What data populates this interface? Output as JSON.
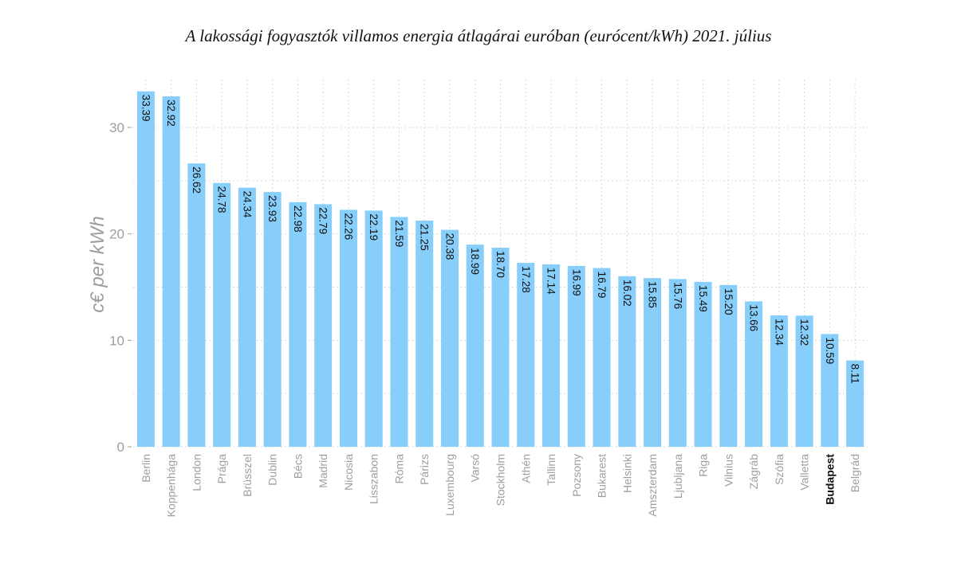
{
  "page": {
    "title": "A lakossági fogyasztók villamos energia átlagárai euróban (eurócent/kWh) 2021. július"
  },
  "chart_data": {
    "type": "bar",
    "ylabel": "c€ per kWh",
    "xlabel": "",
    "ylim": [
      0,
      33.4
    ],
    "yticks": [
      0,
      10,
      20,
      30
    ],
    "grid": "dotted",
    "bar_color": "#87CEFA",
    "highlight_category": "Budapest",
    "categories": [
      "Berlin",
      "Koppenhága",
      "London",
      "Prága",
      "Brüsszel",
      "Dublin",
      "Bécs",
      "Madrid",
      "Nicosia",
      "Lisszabon",
      "Róma",
      "Párizs",
      "Luxembourg",
      "Varsó",
      "Stockholm",
      "Athén",
      "Tallinn",
      "Pozsony",
      "Bukarest",
      "Helsinki",
      "Amszterdam",
      "Ljubljana",
      "Riga",
      "Vilnius",
      "Zágráb",
      "Szófia",
      "Valletta",
      "Budapest",
      "Belgrád"
    ],
    "values": [
      33.39,
      32.92,
      26.62,
      24.78,
      24.34,
      23.93,
      22.98,
      22.79,
      22.26,
      22.19,
      21.59,
      21.25,
      20.38,
      18.99,
      18.7,
      17.28,
      17.14,
      16.99,
      16.79,
      16.02,
      15.85,
      15.76,
      15.49,
      15.2,
      13.66,
      12.34,
      12.32,
      10.59,
      8.11
    ],
    "value_labels": [
      "33.39",
      "32.92",
      "26.62",
      "24.78",
      "24.34",
      "23.93",
      "22.98",
      "22.79",
      "22.26",
      "22.19",
      "21.59",
      "21.25",
      "20.38",
      "18.99",
      "18.70",
      "17.28",
      "17.14",
      "16.99",
      "16.79",
      "16.02",
      "15.85",
      "15.76",
      "15.49",
      "15.20",
      "13.66",
      "12.34",
      "12.32",
      "10.59",
      "8.11"
    ]
  }
}
